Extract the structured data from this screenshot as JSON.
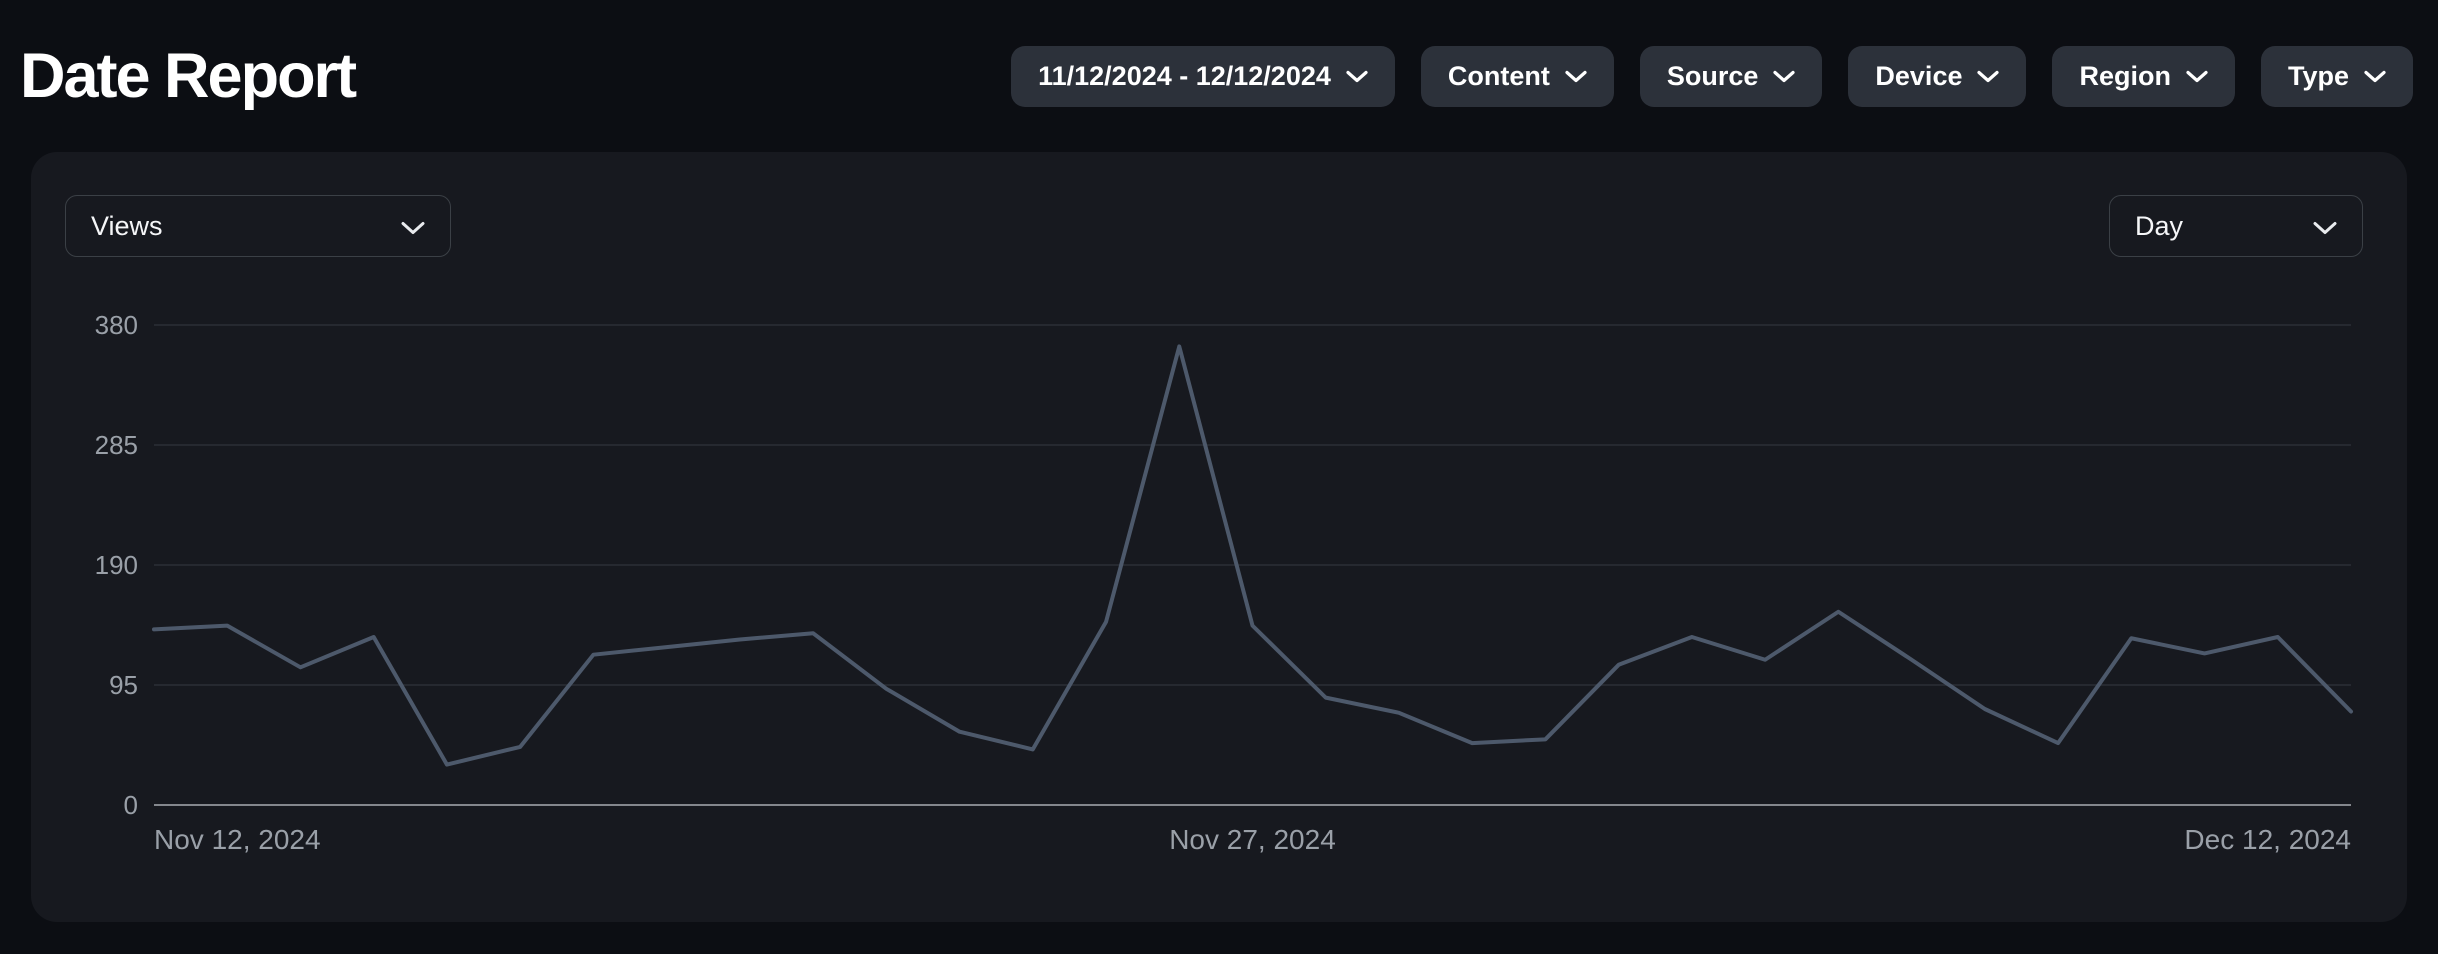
{
  "header": {
    "title": "Date Report"
  },
  "filters": {
    "date_range": {
      "label": "11/12/2024 - 12/12/2024"
    },
    "buttons": [
      {
        "label": "Content"
      },
      {
        "label": "Source"
      },
      {
        "label": "Device"
      },
      {
        "label": "Region"
      },
      {
        "label": "Type"
      }
    ]
  },
  "card": {
    "metric_select": {
      "value": "Views"
    },
    "granularity_select": {
      "value": "Day"
    }
  },
  "chart_data": {
    "type": "line",
    "series_name": "Views",
    "x": [
      "Nov 12, 2024",
      "Nov 13, 2024",
      "Nov 14, 2024",
      "Nov 15, 2024",
      "Nov 16, 2024",
      "Nov 17, 2024",
      "Nov 18, 2024",
      "Nov 19, 2024",
      "Nov 20, 2024",
      "Nov 21, 2024",
      "Nov 22, 2024",
      "Nov 23, 2024",
      "Nov 24, 2024",
      "Nov 25, 2024",
      "Nov 26, 2024",
      "Nov 27, 2024",
      "Nov 28, 2024",
      "Nov 29, 2024",
      "Nov 30, 2024",
      "Dec 1, 2024",
      "Dec 2, 2024",
      "Dec 3, 2024",
      "Dec 4, 2024",
      "Dec 5, 2024",
      "Dec 6, 2024",
      "Dec 7, 2024",
      "Dec 8, 2024",
      "Dec 9, 2024",
      "Dec 10, 2024",
      "Dec 11, 2024",
      "Dec 12, 2024"
    ],
    "values": [
      139,
      142,
      109,
      133,
      32,
      46,
      119,
      125,
      131,
      136,
      92,
      58,
      44,
      145,
      363,
      142,
      85,
      73,
      49,
      52,
      111,
      133,
      115,
      153,
      115,
      76,
      49,
      132,
      120,
      133,
      74
    ],
    "ylim": [
      0,
      380
    ],
    "y_ticks": [
      0,
      95,
      190,
      285,
      380
    ],
    "x_axis_labels": [
      {
        "day_index": 0,
        "text": "Nov 12, 2024",
        "align": "start"
      },
      {
        "day_index": 15,
        "text": "Nov 27, 2024",
        "align": "middle"
      },
      {
        "day_index": 30,
        "text": "Dec 12, 2024",
        "align": "end"
      }
    ],
    "grid": true,
    "legend": false
  },
  "colors": {
    "page_bg": "#0c0e13",
    "card_bg": "#17191f",
    "chip_bg": "#2c313a",
    "select_border": "#3b4046",
    "gridline": "#2b2f37",
    "axis_line": "#84878d",
    "axis_text": "#9aa0a8",
    "line": "#4d596b"
  }
}
